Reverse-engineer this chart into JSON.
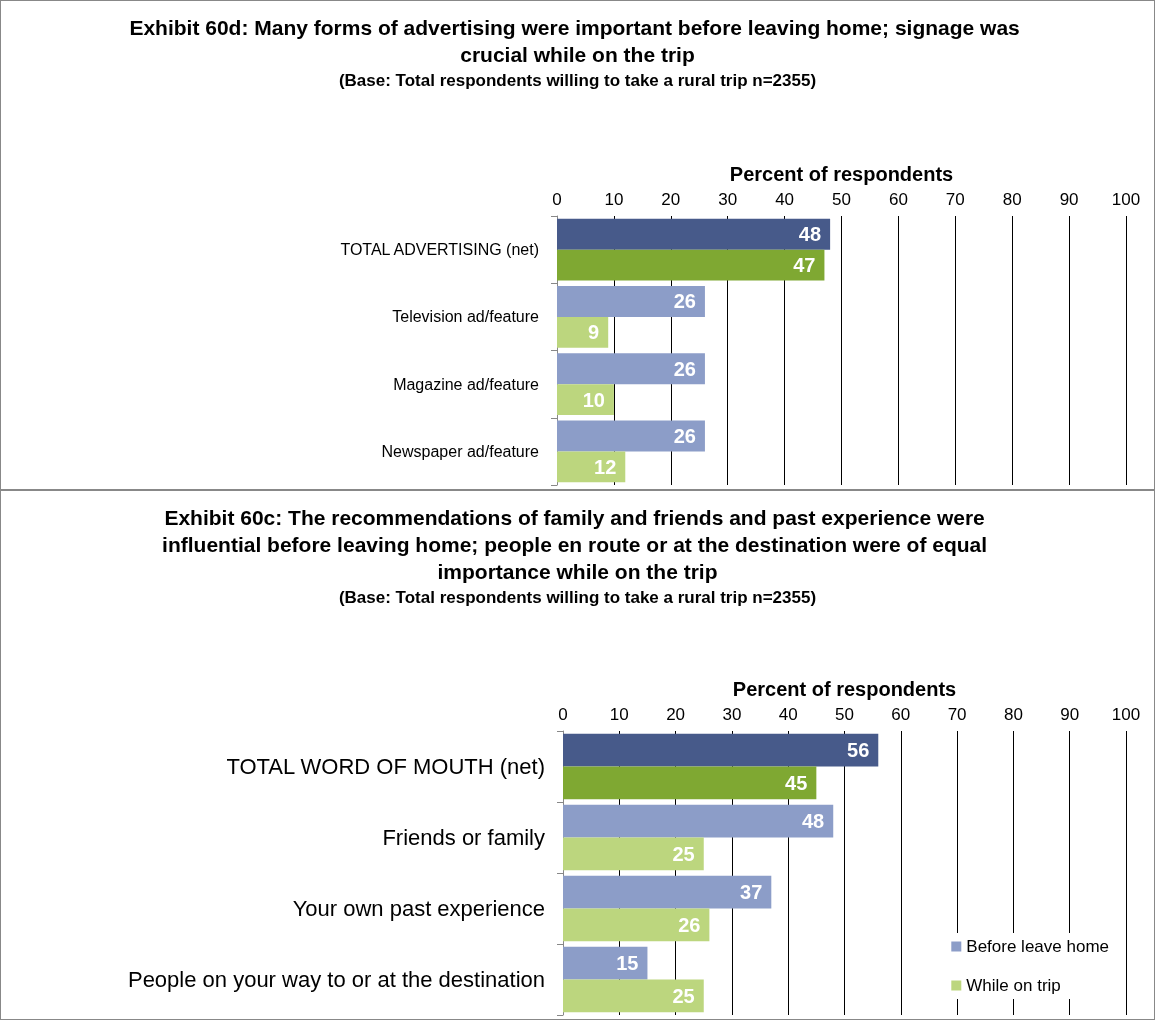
{
  "chart_data": [
    {
      "type": "bar",
      "orientation": "horizontal",
      "title": "Exhibit 60d: Many forms of advertising were important before leaving home; signage was crucial while on the trip",
      "subtitle": "(Base: Total respondents willing to take a rural trip n=2355)",
      "xlabel": "Percent of respondents",
      "categories": [
        "TOTAL ADVERTISING (net)",
        "Television ad/feature",
        "Magazine ad/feature",
        "Newspaper ad/feature"
      ],
      "series": [
        {
          "color": "#8c9dc8",
          "colors": [
            "#475a8a",
            "#8c9dc8",
            "#8c9dc8",
            "#8c9dc8"
          ],
          "values": [
            48,
            26,
            26,
            26
          ]
        },
        {
          "color": "#bcd67e",
          "colors": [
            "#7fa832",
            "#bcd67e",
            "#bcd67e",
            "#bcd67e"
          ],
          "values": [
            47,
            9,
            10,
            12
          ]
        }
      ],
      "xlim": [
        0,
        100
      ],
      "xticks": [
        0,
        10,
        20,
        30,
        40,
        50,
        60,
        70,
        80,
        90,
        100
      ],
      "grid": "x",
      "data_labels": true,
      "legend": false
    },
    {
      "type": "bar",
      "orientation": "horizontal",
      "title": "Exhibit 60c: The recommendations of family and friends and past experience were influential before leaving home; people en route or at the destination were of equal importance while on the trip",
      "subtitle": "(Base: Total respondents willing to take a rural trip n=2355)",
      "xlabel": "Percent of respondents",
      "categories": [
        "TOTAL WORD OF MOUTH (net)",
        "Friends or family",
        "Your own past experience",
        "People on your way to or at the destination"
      ],
      "series": [
        {
          "name": "Before leave home",
          "color": "#8c9dc8",
          "colors": [
            "#475a8a",
            "#8c9dc8",
            "#8c9dc8",
            "#8c9dc8"
          ],
          "values": [
            56,
            48,
            37,
            15
          ]
        },
        {
          "name": "While on trip",
          "color": "#bcd67e",
          "colors": [
            "#7fa832",
            "#bcd67e",
            "#bcd67e",
            "#bcd67e"
          ],
          "values": [
            45,
            25,
            26,
            25
          ]
        }
      ],
      "xlim": [
        0,
        100
      ],
      "xticks": [
        0,
        10,
        20,
        30,
        40,
        50,
        60,
        70,
        80,
        90,
        100
      ],
      "grid": "x",
      "data_labels": true,
      "legend": "bottom right"
    }
  ]
}
